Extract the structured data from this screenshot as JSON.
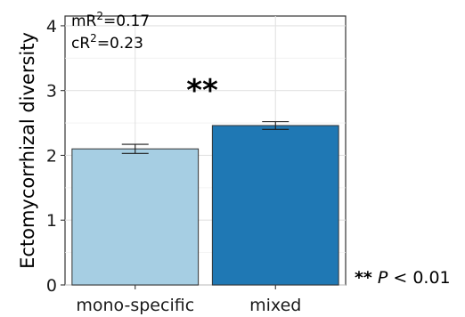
{
  "chart_data": {
    "type": "bar",
    "title": "",
    "xlabel": "",
    "ylabel": "Ectomycorrhizal diversity",
    "categories": [
      "mono-specific",
      "mixed"
    ],
    "values": [
      2.1,
      2.46
    ],
    "error_low": [
      2.03,
      2.4
    ],
    "error_high": [
      2.17,
      2.52
    ],
    "colors": [
      "#a6cee3",
      "#1f78b4"
    ],
    "ylim": [
      0,
      4.15
    ],
    "yticks": [
      "0",
      "1",
      "2",
      "3",
      "4"
    ],
    "ytick_values": [
      0,
      1,
      2,
      3,
      4
    ],
    "grid": true,
    "annotations": {
      "mr2_prefix": "mR",
      "cr2_prefix": "cR",
      "sup": "2",
      "mr2_value": "=0.17",
      "cr2_value": "=0.23",
      "significance": "**",
      "note_stars": "**",
      "note_p": "P",
      "note_rest": " < 0.01"
    }
  }
}
